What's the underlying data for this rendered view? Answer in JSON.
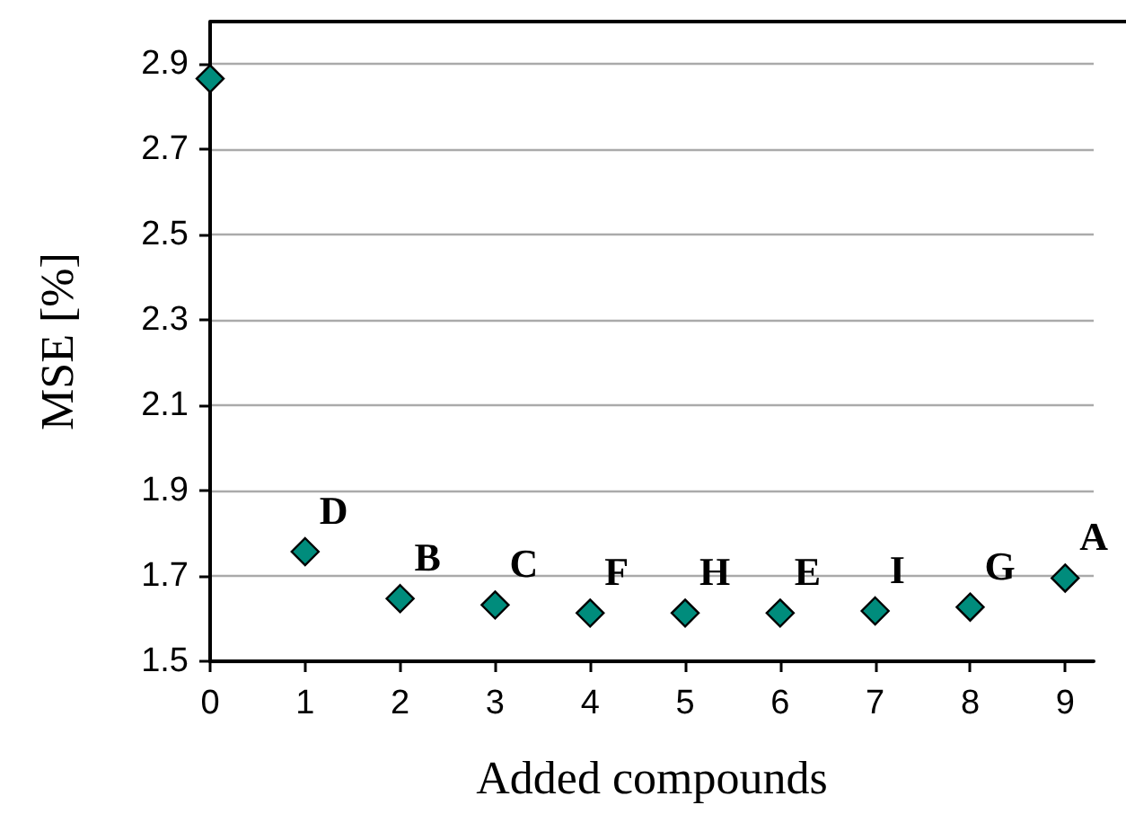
{
  "chart_data": {
    "type": "scatter",
    "xlabel": "Added compounds",
    "ylabel": "MSE [%]",
    "x": [
      0,
      1,
      2,
      3,
      4,
      5,
      6,
      7,
      8,
      9
    ],
    "values": [
      2.866,
      1.757,
      1.647,
      1.632,
      1.613,
      1.613,
      1.613,
      1.618,
      1.627,
      1.695
    ],
    "color": "#008c7c",
    "marker": "diamond",
    "xlim": [
      0,
      9.3
    ],
    "xticks": [
      0,
      1,
      2,
      3,
      4,
      5,
      6,
      7,
      8,
      9
    ],
    "ylim": [
      1.5,
      3.0
    ],
    "yticks": [
      1.5,
      1.7,
      1.9,
      2.1,
      2.3,
      2.5,
      2.7,
      2.9
    ],
    "grid": "y",
    "annotations": [
      {
        "text": "D",
        "x": 1,
        "y": 1.757
      },
      {
        "text": "B",
        "x": 2,
        "y": 1.647
      },
      {
        "text": "C",
        "x": 3,
        "y": 1.632
      },
      {
        "text": "F",
        "x": 4,
        "y": 1.613
      },
      {
        "text": "H",
        "x": 5,
        "y": 1.613
      },
      {
        "text": "E",
        "x": 6,
        "y": 1.613
      },
      {
        "text": "I",
        "x": 7,
        "y": 1.618
      },
      {
        "text": "G",
        "x": 8,
        "y": 1.627
      },
      {
        "text": "A",
        "x": 9,
        "y": 1.695
      }
    ]
  }
}
